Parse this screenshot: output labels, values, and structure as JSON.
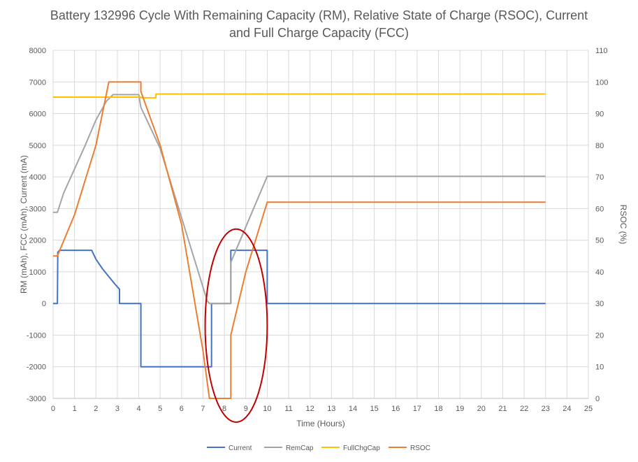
{
  "chart_data": {
    "type": "line",
    "title_line1": "Battery 132996 Cycle With Remaining Capacity (RM), Relative State of Charge (RSOC), Current",
    "title_line2": "and Full Charge Capacity (FCC)",
    "xlabel": "Time (Hours)",
    "ylabel": "RM (mAh), FCC (mAh), Current (mA)",
    "y2label": "RSOC (%)",
    "xlim": [
      0,
      25
    ],
    "ylim": [
      -3000,
      8000
    ],
    "y2lim": [
      0,
      110
    ],
    "xticks": [
      "0",
      "1",
      "2",
      "3",
      "4",
      "5",
      "6",
      "7",
      "8",
      "9",
      "10",
      "11",
      "12",
      "13",
      "14",
      "15",
      "16",
      "17",
      "18",
      "19",
      "20",
      "21",
      "22",
      "23",
      "24",
      "25"
    ],
    "yticks": [
      "-3000",
      "-2000",
      "-1000",
      "0",
      "1000",
      "2000",
      "3000",
      "4000",
      "5000",
      "6000",
      "7000",
      "8000"
    ],
    "y2ticks": [
      "0",
      "10",
      "20",
      "30",
      "40",
      "50",
      "60",
      "70",
      "80",
      "90",
      "100",
      "110"
    ],
    "grid": true,
    "legend_position": "bottom",
    "annotation": "red ellipse around hours 7.2–10",
    "series": [
      {
        "name": "Current",
        "axis": "left",
        "color": "#4472C4",
        "points": [
          [
            0,
            0
          ],
          [
            0.2,
            0
          ],
          [
            0.22,
            1620
          ],
          [
            0.3,
            1680
          ],
          [
            1.8,
            1680
          ],
          [
            2.0,
            1400
          ],
          [
            2.3,
            1100
          ],
          [
            2.6,
            850
          ],
          [
            2.9,
            600
          ],
          [
            3.1,
            450
          ],
          [
            3.1,
            0
          ],
          [
            4.1,
            0
          ],
          [
            4.1,
            -2000
          ],
          [
            7.4,
            -2000
          ],
          [
            7.4,
            0
          ],
          [
            8.3,
            0
          ],
          [
            8.3,
            1680
          ],
          [
            10.0,
            1680
          ],
          [
            10.0,
            0
          ],
          [
            23,
            0
          ]
        ]
      },
      {
        "name": "RemCap",
        "axis": "left",
        "color": "#A5A5A5",
        "points": [
          [
            0,
            2880
          ],
          [
            0.2,
            2880
          ],
          [
            0.5,
            3500
          ],
          [
            1.5,
            5000
          ],
          [
            2.0,
            5800
          ],
          [
            2.5,
            6400
          ],
          [
            2.8,
            6600
          ],
          [
            4.0,
            6600
          ],
          [
            4.1,
            6200
          ],
          [
            5.0,
            4900
          ],
          [
            7.2,
            80
          ],
          [
            7.3,
            0
          ],
          [
            8.3,
            0
          ],
          [
            8.3,
            1300
          ],
          [
            10.0,
            4020
          ],
          [
            23,
            4020
          ]
        ]
      },
      {
        "name": "FullChgCap",
        "axis": "left",
        "color": "#FFC000",
        "points": [
          [
            0,
            6520
          ],
          [
            4.1,
            6520
          ],
          [
            4.1,
            6500
          ],
          [
            4.8,
            6500
          ],
          [
            4.8,
            6620
          ],
          [
            23,
            6620
          ]
        ]
      },
      {
        "name": "RSOC",
        "axis": "right",
        "color": "#ED7D31",
        "points": [
          [
            0,
            45
          ],
          [
            0.2,
            45
          ],
          [
            1.0,
            58
          ],
          [
            2.0,
            80
          ],
          [
            2.6,
            100
          ],
          [
            4.1,
            100
          ],
          [
            4.1,
            97
          ],
          [
            5.0,
            80
          ],
          [
            6.0,
            55
          ],
          [
            7.0,
            15
          ],
          [
            7.3,
            0
          ],
          [
            8.3,
            0
          ],
          [
            8.3,
            20
          ],
          [
            9.0,
            40
          ],
          [
            10.0,
            62
          ],
          [
            23,
            62
          ]
        ]
      }
    ]
  }
}
